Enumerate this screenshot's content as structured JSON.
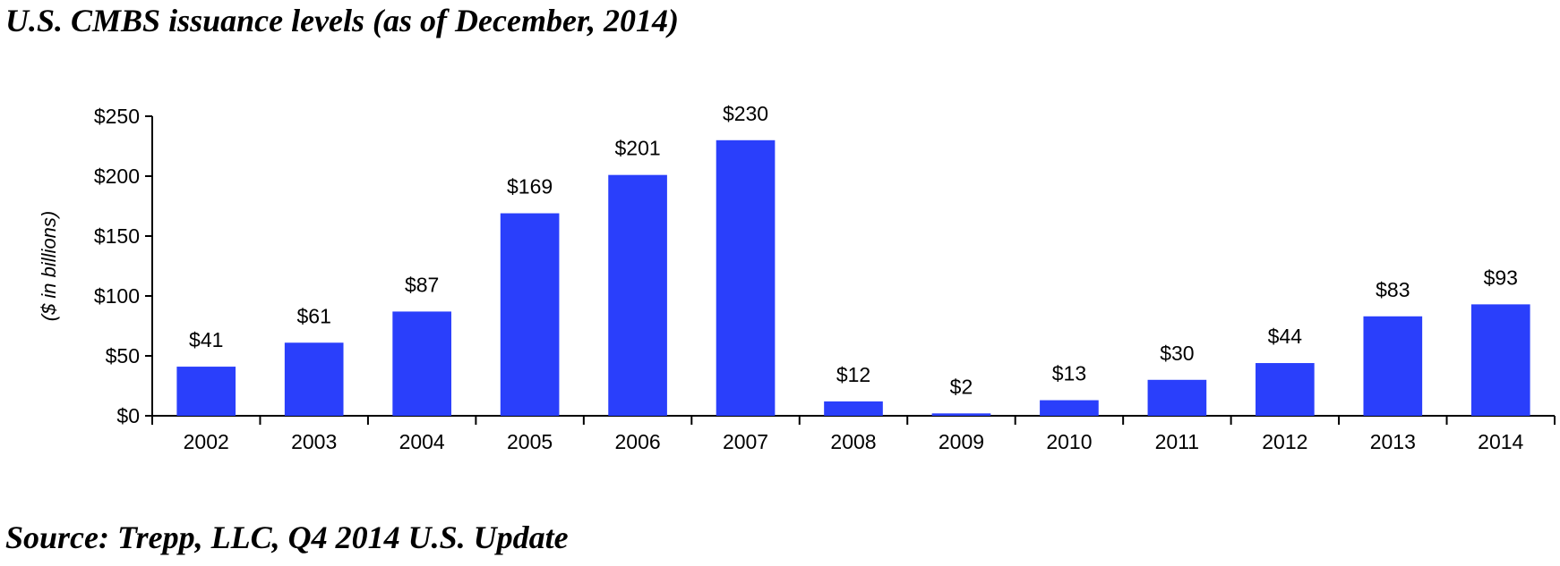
{
  "header": {
    "title": "U.S. CMBS issuance levels (as of December, 2014)"
  },
  "footer": {
    "source": "Source:  Trepp, LLC, Q4 2014 U.S. Update"
  },
  "chart_data": {
    "type": "bar",
    "title": "U.S. CMBS issuance levels (as of December, 2014)",
    "xlabel": "",
    "ylabel": "($ in billions)",
    "categories": [
      "2002",
      "2003",
      "2004",
      "2005",
      "2006",
      "2007",
      "2008",
      "2009",
      "2010",
      "2011",
      "2012",
      "2013",
      "2014"
    ],
    "values": [
      41,
      61,
      87,
      169,
      201,
      230,
      12,
      2,
      13,
      30,
      44,
      83,
      93
    ],
    "data_labels": [
      "$41",
      "$61",
      "$87",
      "$169",
      "$201",
      "$230",
      "$12",
      "$2",
      "$13",
      "$30",
      "$44",
      "$83",
      "$93"
    ],
    "ylim": [
      0,
      250
    ],
    "yticks": [
      0,
      50,
      100,
      150,
      200,
      250
    ],
    "ytick_labels": [
      "$0",
      "$50",
      "$100",
      "$150",
      "$200",
      "$250"
    ],
    "bar_color": "#2a3ffb",
    "grid": false,
    "legend": "none"
  }
}
